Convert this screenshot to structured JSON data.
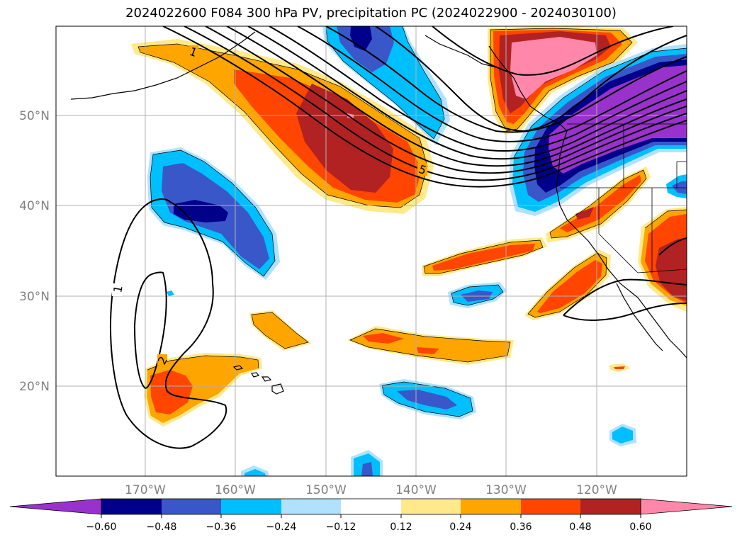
{
  "title": "2024022600 F084 300 hPa PV, precipitation PC (2024022900 - 2024030100)",
  "map": {
    "lat_labels": [
      "50°N",
      "40°N",
      "30°N",
      "20°N"
    ],
    "lon_labels": [
      "170°W",
      "160°W",
      "150°W",
      "140°W",
      "130°W",
      "120°W"
    ],
    "contour_labels": [
      "1",
      "5",
      "1",
      "2"
    ]
  },
  "colorbar": {
    "ticks": [
      "−0.60",
      "−0.48",
      "−0.36",
      "−0.24",
      "−0.12",
      "0.12",
      "0.24",
      "0.36",
      "0.48",
      "0.60"
    ],
    "colors": {
      "under": "#9932cc",
      "n048": "#00008b",
      "n036": "#3a57c9",
      "n024": "#00bfff",
      "n012": "#b0e2ff",
      "zero": "#ffffff",
      "p012": "#ffe98a",
      "p024": "#ffa500",
      "p036": "#ff4500",
      "p048": "#b22222",
      "over": "#ff88aa"
    }
  }
}
